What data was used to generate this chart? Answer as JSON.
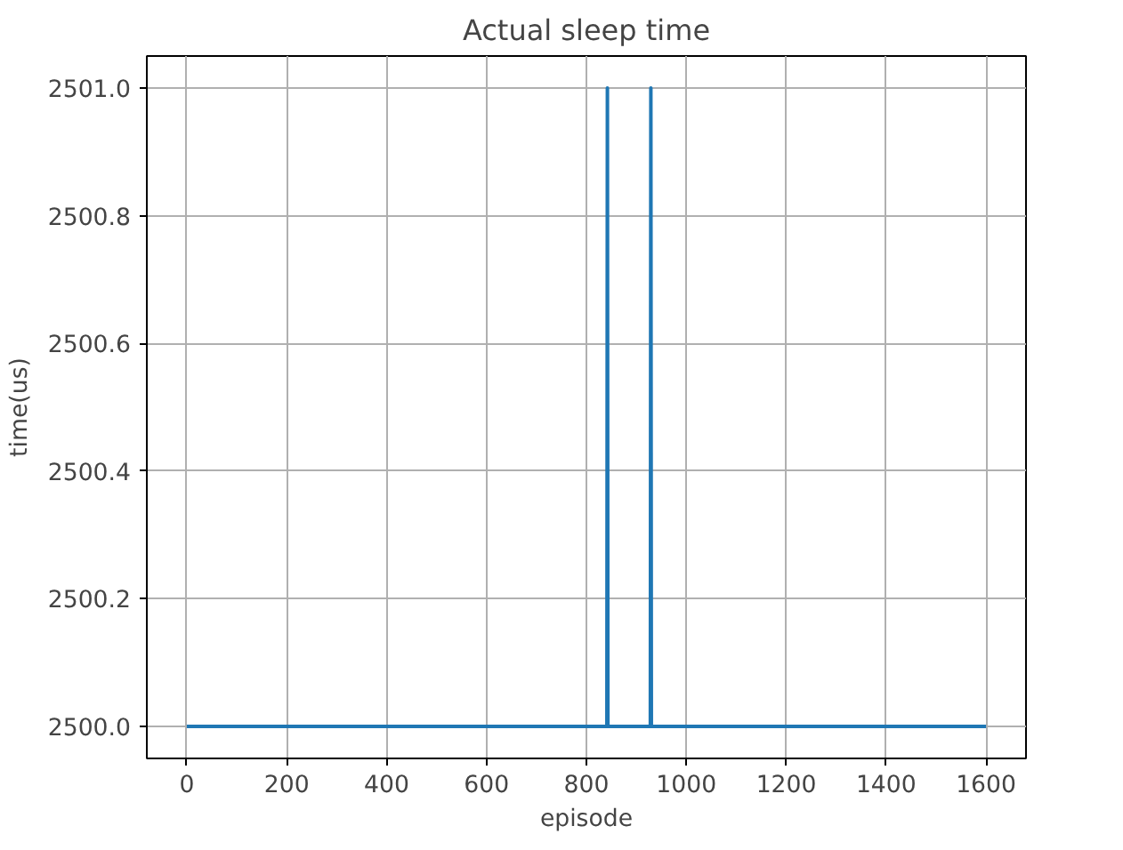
{
  "chart_data": {
    "type": "line",
    "title": "Actual sleep time",
    "xlabel": "episode",
    "ylabel": "time(us)",
    "series": [
      {
        "color": "#1f77b4",
        "x": [
          0,
          841,
          842,
          843,
          928,
          929,
          930,
          1600
        ],
        "values": [
          2500,
          2500,
          2501,
          2500,
          2500,
          2501,
          2500,
          2500
        ]
      }
    ],
    "xlim": [
      -80,
      1680
    ],
    "ylim": [
      2499.95,
      2501.05
    ],
    "xticks": [
      0,
      200,
      400,
      600,
      800,
      1000,
      1200,
      1400,
      1600
    ],
    "yticks": [
      {
        "value": 2500,
        "label": "2500.0"
      },
      {
        "value": 2500.2,
        "label": "2500.2"
      },
      {
        "value": 2500.4,
        "label": "2500.4"
      },
      {
        "value": 2500.6,
        "label": "2500.6"
      },
      {
        "value": 2500.8,
        "label": "2500.8"
      },
      {
        "value": 2501,
        "label": "2501.0"
      }
    ],
    "grid": true,
    "marker": "none",
    "line_style": "solid"
  }
}
